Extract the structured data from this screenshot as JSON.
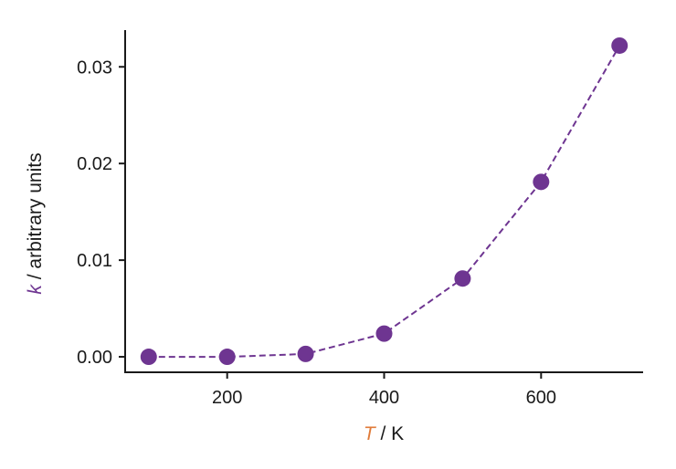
{
  "chart_data": {
    "type": "line",
    "x": [
      100,
      200,
      300,
      400,
      500,
      600,
      700
    ],
    "series": [
      {
        "values": [
          0.0,
          0.0,
          0.0003,
          0.0024,
          0.0081,
          0.0181,
          0.0322
        ]
      }
    ],
    "xlabel": {
      "symbol": "T",
      "unit": " / K"
    },
    "ylabel": {
      "symbol": "k",
      "unit": " / arbitrary units"
    },
    "xlim": [
      70,
      730
    ],
    "ylim": [
      -0.0016,
      0.0338
    ],
    "xticks": [
      200,
      400,
      600
    ],
    "xtick_labels": [
      "200",
      "400",
      "600"
    ],
    "yticks": [
      0.0,
      0.01,
      0.02,
      0.03
    ],
    "ytick_labels": [
      "0.00",
      "0.01",
      "0.02",
      "0.03"
    ],
    "grid": false,
    "line_style": "dashed",
    "marker": "circle",
    "colors": {
      "series": "#6e3591",
      "x_symbol": "#e07b39",
      "y_symbol": "#6e3591",
      "axis": "#1a1a1a"
    }
  }
}
